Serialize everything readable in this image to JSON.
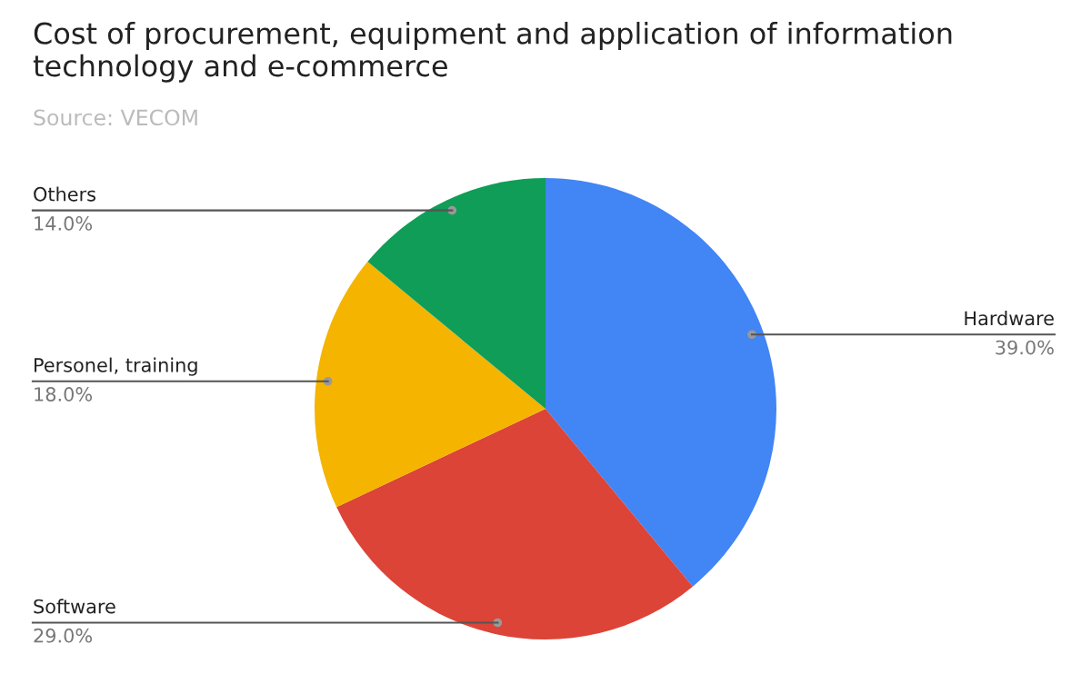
{
  "chart_data": {
    "type": "pie",
    "title": "Cost of procurement, equipment and application of information technology and e-commerce",
    "subtitle": "Source: VECOM",
    "categories": [
      "Hardware",
      "Software",
      "Personel, training",
      "Others"
    ],
    "values": [
      39,
      29,
      18,
      14
    ],
    "value_labels": [
      "39.0%",
      "29.0%",
      "18.0%",
      "14.0%"
    ],
    "colors": [
      "#4285f4",
      "#db4437",
      "#f4b400",
      "#0f9d58"
    ],
    "legend": false
  }
}
